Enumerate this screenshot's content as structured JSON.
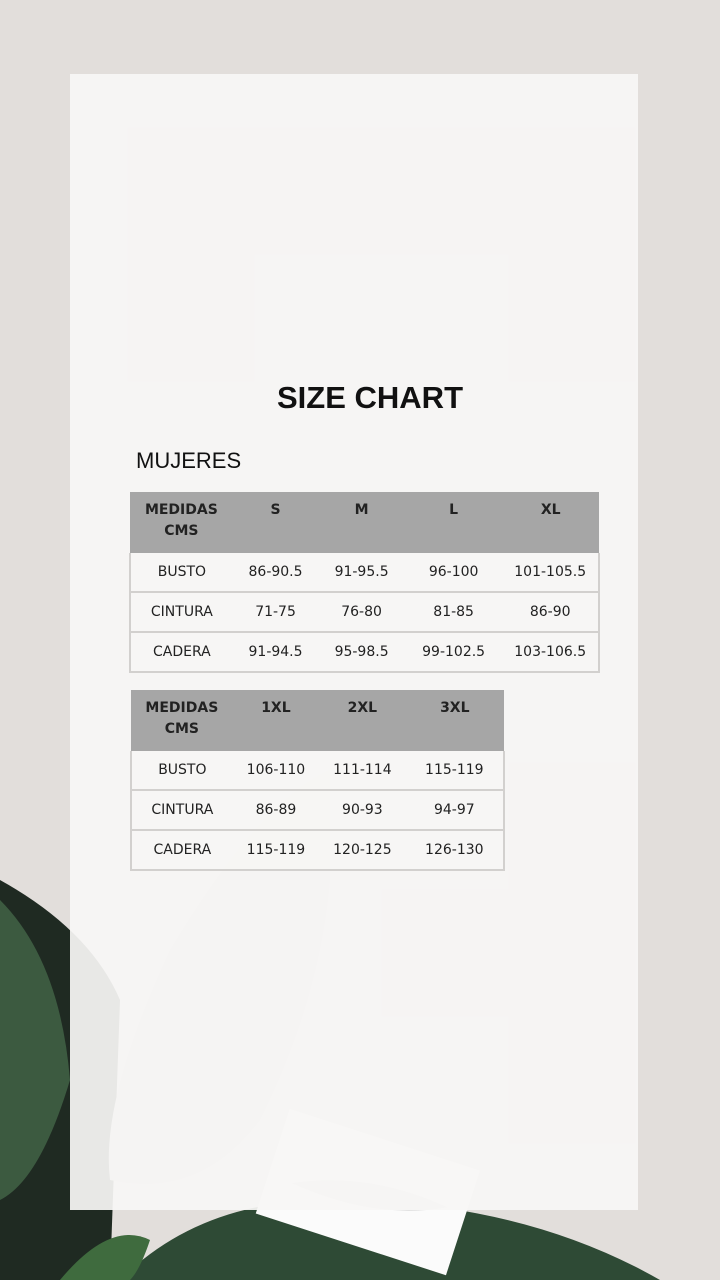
{
  "title": "SIZE CHART",
  "subtitle": "MUJERES",
  "colors": {
    "background": "#e2dedb",
    "panel": "#f6f5f4",
    "header": "#a6a6a6",
    "plant": "#2f4a34"
  },
  "table1": {
    "header": [
      "MEDIDAS CMS",
      "S",
      "M",
      "L",
      "XL"
    ],
    "rows": [
      [
        "BUSTO",
        "86-90.5",
        "91-95.5",
        "96-100",
        "101-105.5"
      ],
      [
        "CINTURA",
        "71-75",
        "76-80",
        "81-85",
        "86-90"
      ],
      [
        "CADERA",
        "91-94.5",
        "95-98.5",
        "99-102.5",
        "103-106.5"
      ]
    ]
  },
  "table2": {
    "header": [
      "MEDIDAS CMS",
      "1XL",
      "2XL",
      "3XL"
    ],
    "rows": [
      [
        "BUSTO",
        "106-110",
        "111-114",
        "115-119"
      ],
      [
        "CINTURA",
        "86-89",
        "90-93",
        "94-97"
      ],
      [
        "CADERA",
        "115-119",
        "120-125",
        "126-130"
      ]
    ]
  }
}
